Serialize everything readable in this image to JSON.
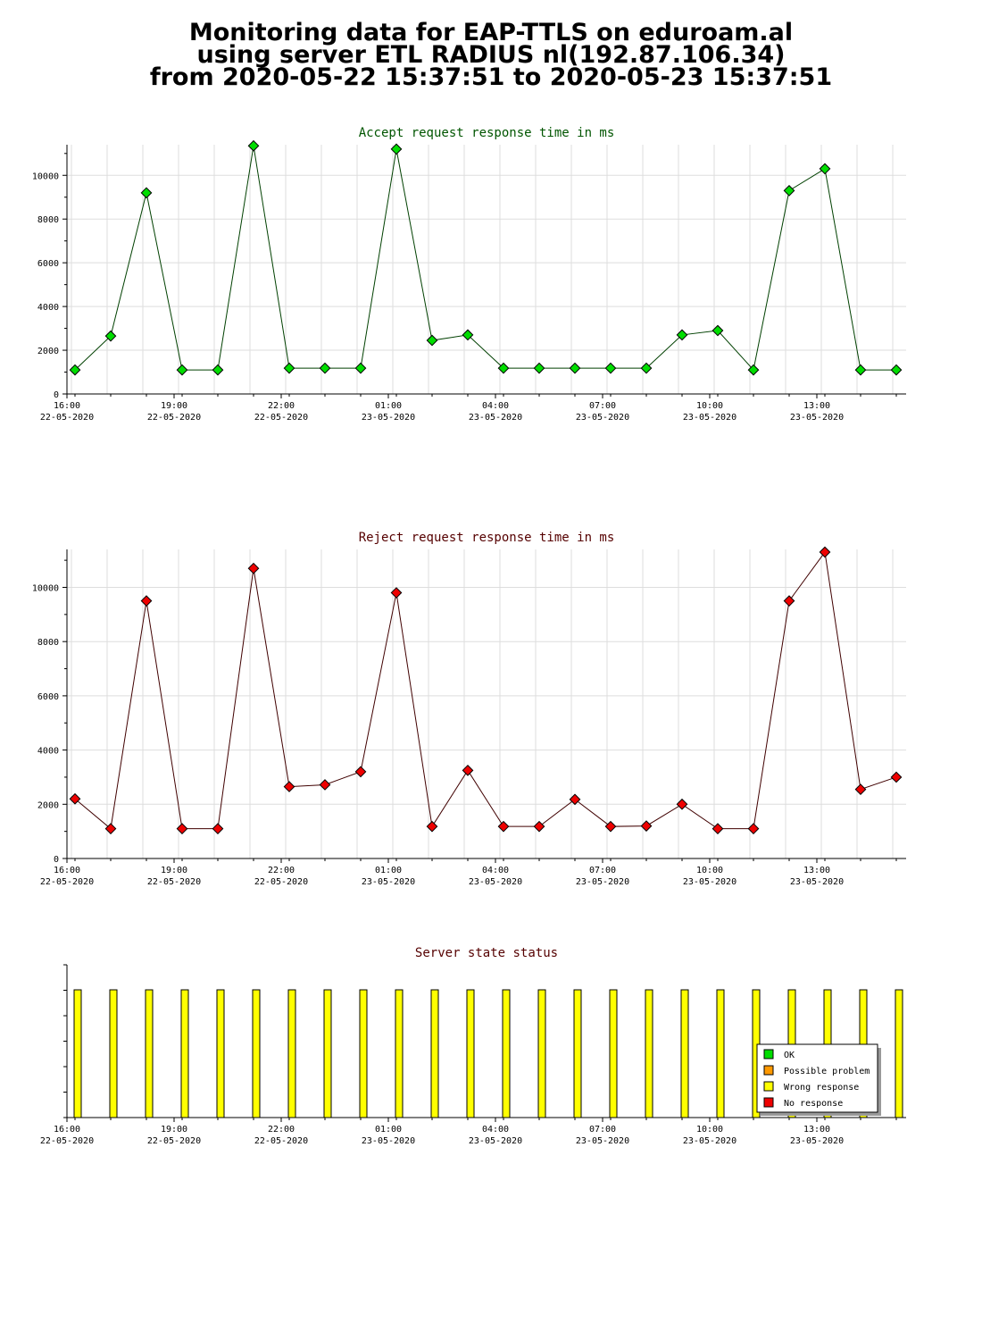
{
  "header": {
    "line1": "Monitoring data for EAP-TTLS on eduroam.al",
    "line2": "using server ETL RADIUS nl(192.87.106.34)",
    "line3": "from 2020-05-22 15:37:51 to 2020-05-23 15:37:51"
  },
  "colors": {
    "accept_line": "#004000",
    "accept_marker": "#00dd00",
    "reject_line": "#400000",
    "reject_marker": "#ee0000",
    "grid": "#dddddd",
    "accept_title": "#005500",
    "reject_title": "#550000",
    "status_title": "#550000",
    "wrong_response": "#ffff00"
  },
  "x_axis_labels": [
    {
      "time": "16:00",
      "date": "22-05-2020"
    },
    {
      "time": "19:00",
      "date": "22-05-2020"
    },
    {
      "time": "22:00",
      "date": "22-05-2020"
    },
    {
      "time": "01:00",
      "date": "23-05-2020"
    },
    {
      "time": "04:00",
      "date": "23-05-2020"
    },
    {
      "time": "07:00",
      "date": "23-05-2020"
    },
    {
      "time": "10:00",
      "date": "23-05-2020"
    },
    {
      "time": "13:00",
      "date": "23-05-2020"
    }
  ],
  "chart_data": [
    {
      "id": "accept",
      "type": "line",
      "title": "Accept request response time in ms",
      "x": [
        "2020-05-22 15:46",
        "2020-05-22 16:46",
        "2020-05-22 17:46",
        "2020-05-22 18:46",
        "2020-05-22 19:46",
        "2020-05-22 20:46",
        "2020-05-22 21:46",
        "2020-05-22 22:46",
        "2020-05-22 23:46",
        "2020-05-23 00:46",
        "2020-05-23 01:46",
        "2020-05-23 02:46",
        "2020-05-23 03:46",
        "2020-05-23 04:46",
        "2020-05-23 05:46",
        "2020-05-23 06:46",
        "2020-05-23 07:46",
        "2020-05-23 08:46",
        "2020-05-23 09:46",
        "2020-05-23 10:46",
        "2020-05-23 11:46",
        "2020-05-23 12:46",
        "2020-05-23 13:46",
        "2020-05-23 14:46"
      ],
      "values": [
        1100,
        2650,
        9200,
        1100,
        1100,
        11350,
        1180,
        1180,
        1180,
        11200,
        2450,
        2700,
        1180,
        1180,
        1180,
        1180,
        1180,
        2700,
        2900,
        1100,
        9300,
        10300,
        1100,
        1100
      ],
      "y_ticks": [
        0,
        2000,
        4000,
        6000,
        8000,
        10000
      ],
      "ylim": [
        0,
        11400
      ],
      "grid": true
    },
    {
      "id": "reject",
      "type": "line",
      "title": "Reject request response time in ms",
      "x": [
        "2020-05-22 15:46",
        "2020-05-22 16:46",
        "2020-05-22 17:46",
        "2020-05-22 18:46",
        "2020-05-22 19:46",
        "2020-05-22 20:46",
        "2020-05-22 21:46",
        "2020-05-22 22:46",
        "2020-05-22 23:46",
        "2020-05-23 00:46",
        "2020-05-23 01:46",
        "2020-05-23 02:46",
        "2020-05-23 03:46",
        "2020-05-23 04:46",
        "2020-05-23 05:46",
        "2020-05-23 06:46",
        "2020-05-23 07:46",
        "2020-05-23 08:46",
        "2020-05-23 09:46",
        "2020-05-23 10:46",
        "2020-05-23 11:46",
        "2020-05-23 12:46",
        "2020-05-23 13:46",
        "2020-05-23 14:46"
      ],
      "values": [
        2200,
        1100,
        9500,
        1100,
        1100,
        10700,
        2650,
        2720,
        3200,
        9800,
        1180,
        3250,
        1180,
        1180,
        2180,
        1180,
        1200,
        2000,
        1100,
        1100,
        9500,
        11300,
        2550,
        3000
      ],
      "y_ticks": [
        0,
        2000,
        4000,
        6000,
        8000,
        10000
      ],
      "ylim": [
        0,
        11400
      ],
      "grid": true
    },
    {
      "id": "status",
      "type": "bar",
      "title": "Server state status",
      "x": [
        "2020-05-22 15:46",
        "2020-05-22 16:46",
        "2020-05-22 17:46",
        "2020-05-22 18:46",
        "2020-05-22 19:46",
        "2020-05-22 20:46",
        "2020-05-22 21:46",
        "2020-05-22 22:46",
        "2020-05-22 23:46",
        "2020-05-23 00:46",
        "2020-05-23 01:46",
        "2020-05-23 02:46",
        "2020-05-23 03:46",
        "2020-05-23 04:46",
        "2020-05-23 05:46",
        "2020-05-23 06:46",
        "2020-05-23 07:46",
        "2020-05-23 08:46",
        "2020-05-23 09:46",
        "2020-05-23 10:46",
        "2020-05-23 11:46",
        "2020-05-23 12:46",
        "2020-05-23 13:46",
        "2020-05-23 14:46"
      ],
      "values": [
        "Wrong response",
        "Wrong response",
        "Wrong response",
        "Wrong response",
        "Wrong response",
        "Wrong response",
        "Wrong response",
        "Wrong response",
        "Wrong response",
        "Wrong response",
        "Wrong response",
        "Wrong response",
        "Wrong response",
        "Wrong response",
        "Wrong response",
        "Wrong response",
        "Wrong response",
        "Wrong response",
        "Wrong response",
        "Wrong response",
        "Wrong response",
        "Wrong response",
        "Wrong response",
        "Wrong response"
      ],
      "legend": [
        {
          "label": "OK",
          "color": "#00dd00"
        },
        {
          "label": "Possible problem",
          "color": "#ff9900"
        },
        {
          "label": "Wrong response",
          "color": "#ffff00"
        },
        {
          "label": "No response",
          "color": "#ee0000"
        }
      ],
      "legend_position": "bottom-right"
    }
  ]
}
